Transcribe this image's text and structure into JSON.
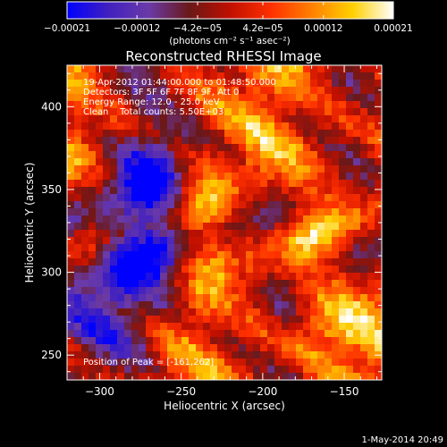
{
  "chart_data": {
    "type": "heatmap",
    "title": "Reconstructed RHESSI Image",
    "xlabel": "Heliocentric X (arcsec)",
    "ylabel": "Heliocentric Y (arcsec)",
    "xlim": [
      -320,
      -127
    ],
    "ylim": [
      235,
      425
    ],
    "x_ticks": [
      -300,
      -250,
      -200,
      -150
    ],
    "x_tick_labels": [
      "−300",
      "−250",
      "−200",
      "−150"
    ],
    "y_ticks": [
      250,
      300,
      350,
      400
    ],
    "y_tick_labels": [
      "250",
      "300",
      "350",
      "400"
    ],
    "colorbar": {
      "min": -0.00021,
      "max": 0.00021,
      "ticks": [
        -0.00021,
        -0.00012,
        -4.2e-05,
        4.2e-05,
        0.00012,
        0.00021
      ],
      "tick_labels": [
        "−0.00021",
        "−0.00012",
        "−4.2e−05",
        "4.2e−05",
        "0.00012",
        "0.00021"
      ],
      "unit_label": "(photons cm⁻² s⁻¹ asec⁻²)",
      "colors": [
        "#0000ff",
        "#4020c0",
        "#6a3aa8",
        "#6a1818",
        "#c01000",
        "#ff3000",
        "#ff8000",
        "#ffd000",
        "#ffffff"
      ]
    },
    "annotations": [
      "19-Apr-2012 01:44:00.000 to 01:48:50.000",
      "Detectors: 3F 5F 6F 7F 8F 9F, Att 0",
      "Energy Range: 12.0 - 25.0 keV",
      "Clean    Total counts: 5.50E+03"
    ],
    "peak_label": "Position of Peak = [-161,262]",
    "peak_position": [
      -161,
      262
    ],
    "timestamp": "1-May-2014 20:49"
  }
}
